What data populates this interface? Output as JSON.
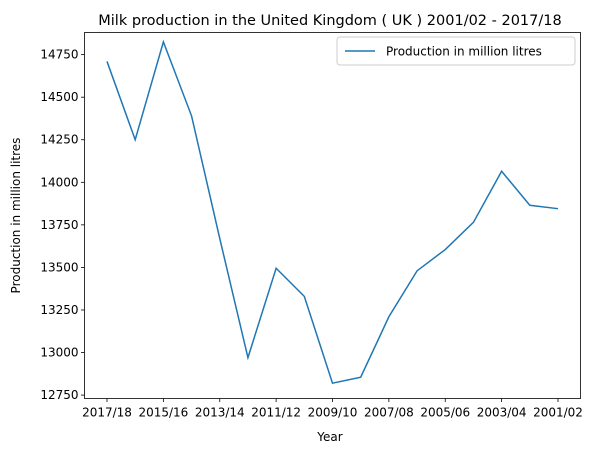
{
  "chart_data": {
    "type": "line",
    "title": "Milk production in the United Kingdom ( UK ) 2001/02 - 2017/18",
    "xlabel": "Year",
    "ylabel": "Production in million litres",
    "x_tick_labels": [
      "2017/18",
      "2015/16",
      "2013/14",
      "2011/12",
      "2009/10",
      "2007/08",
      "2005/06",
      "2003/04",
      "2001/02"
    ],
    "ylim": [
      12730,
      14880
    ],
    "y_ticks": [
      12750,
      13000,
      13250,
      13500,
      13750,
      14000,
      14250,
      14500,
      14750
    ],
    "grid": false,
    "legend_position": "top-right",
    "series": [
      {
        "name": "Production in million litres",
        "color": "#1f77b4",
        "x": [
          "2017/18",
          "2016/17",
          "2015/16",
          "2014/15",
          "2013/14",
          "2012/13",
          "2011/12",
          "2010/11",
          "2009/10",
          "2008/09",
          "2007/08",
          "2006/07",
          "2005/06",
          "2004/05",
          "2003/04",
          "2002/03",
          "2001/02"
        ],
        "values": [
          14710,
          14250,
          14825,
          14390,
          13670,
          12970,
          13495,
          13330,
          12820,
          12855,
          13210,
          13480,
          13605,
          13765,
          14065,
          13865,
          13845
        ]
      }
    ]
  }
}
